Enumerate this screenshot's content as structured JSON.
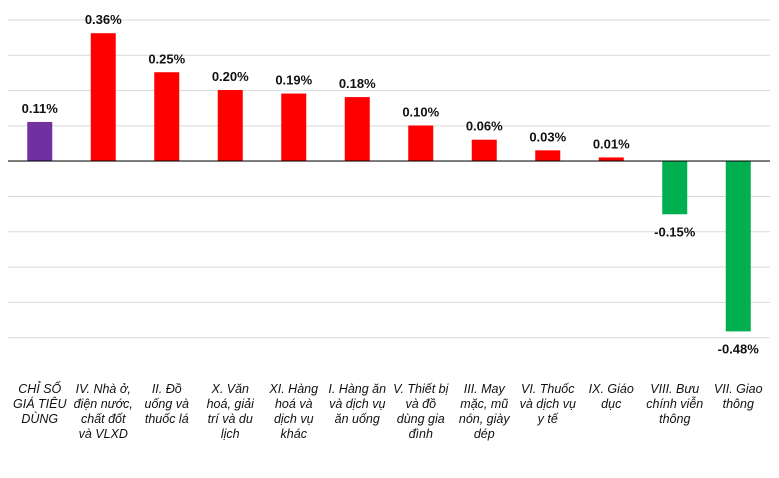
{
  "chart_data": {
    "type": "bar",
    "title": "",
    "xlabel": "",
    "ylabel": "",
    "ylim": [
      -0.6,
      0.4
    ],
    "grid": true,
    "categories": [
      "CHỈ SỐ GIÁ TIÊU DÙNG",
      "IV. Nhà ở, điện nước, chất đốt và VLXD",
      "II. Đồ uống và thuốc lá",
      "X. Văn hoá, giải trí và du lịch",
      "XI. Hàng hoá và dịch vụ khác",
      "I. Hàng ăn và dịch vụ ăn uống",
      "V. Thiết bị và đồ dùng gia đình",
      "III. May mặc, mũ nón, giày dép",
      "VI. Thuốc và dịch vụ y tế",
      "IX. Giáo dục",
      "VIII. Bưu chính viễn thông",
      "VII. Giao thông"
    ],
    "values": [
      0.11,
      0.36,
      0.25,
      0.2,
      0.19,
      0.18,
      0.1,
      0.06,
      0.03,
      0.01,
      -0.15,
      -0.48
    ],
    "value_labels": [
      "0.11%",
      "0.36%",
      "0.25%",
      "0.20%",
      "0.19%",
      "0.18%",
      "0.10%",
      "0.06%",
      "0.03%",
      "0.01%",
      "-0.15%",
      "-0.48%"
    ],
    "bar_colors": [
      "#7030A0",
      "#FF0000",
      "#FF0000",
      "#FF0000",
      "#FF0000",
      "#FF0000",
      "#FF0000",
      "#FF0000",
      "#FF0000",
      "#FF0000",
      "#00B050",
      "#00B050"
    ]
  },
  "colors": {
    "index_bar": "#7030A0",
    "increase_bar": "#FF0000",
    "decrease_bar": "#00B050",
    "gridline": "#d9d9d9",
    "axis": "#000000"
  }
}
